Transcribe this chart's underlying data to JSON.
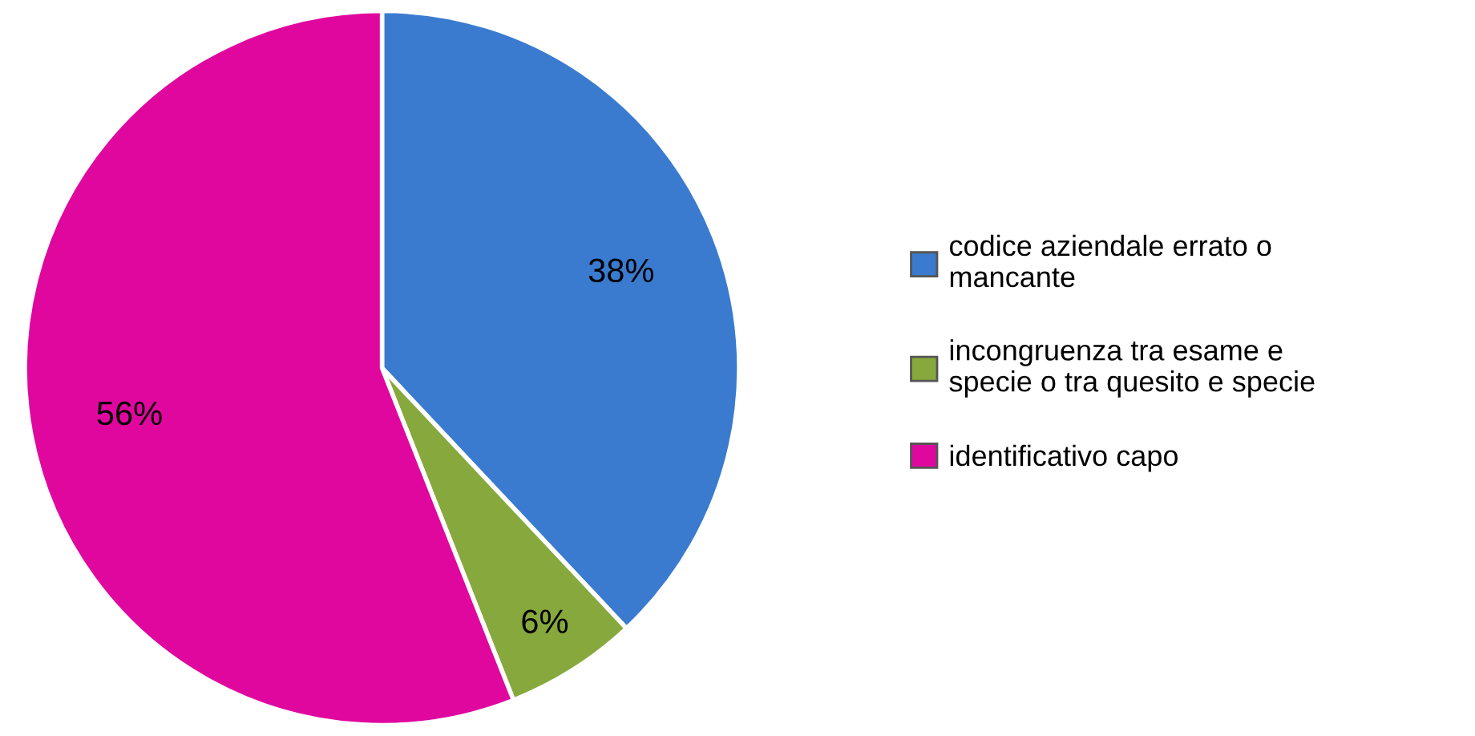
{
  "chart_data": {
    "type": "pie",
    "categories": [
      "codice aziendale errato o mancante",
      "incongruenza tra esame e specie o tra quesito e specie",
      "identificativo capo"
    ],
    "values": [
      38,
      6,
      56
    ],
    "colors": [
      "#3a7bd0",
      "#86a83c",
      "#e0079f"
    ],
    "value_labels": [
      "38%",
      "6%",
      "56%"
    ],
    "legend": "right"
  }
}
